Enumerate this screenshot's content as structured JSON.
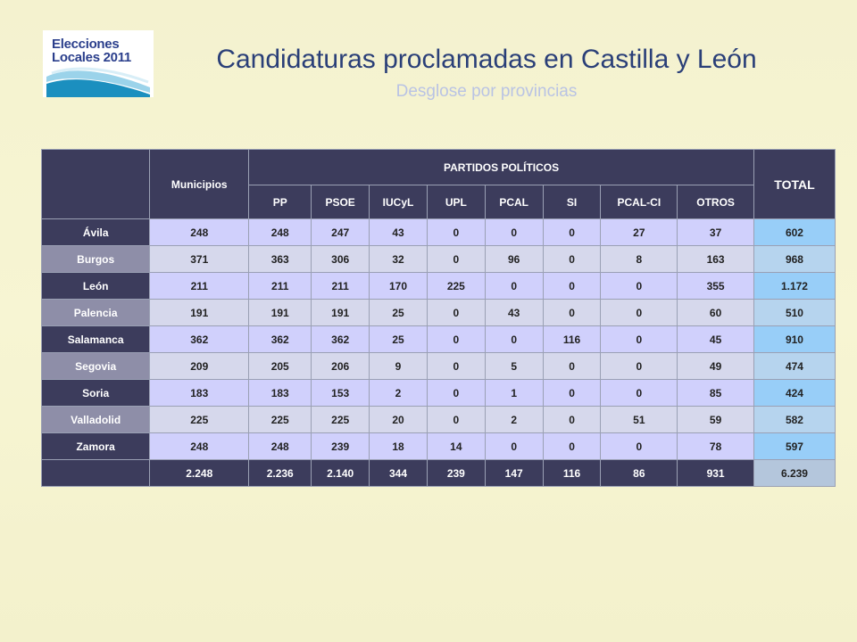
{
  "header": {
    "logo_line1": "Elecciones",
    "logo_line2": "Locales 2011",
    "title": "Candidaturas proclamadas en Castilla y León",
    "subtitle": "Desglose por provincias"
  },
  "table": {
    "col_municipios": "Municipios",
    "col_partidos": "PARTIDOS POLÍTICOS",
    "col_total": "TOTAL",
    "parties": [
      "PP",
      "PSOE",
      "IUCyL",
      "UPL",
      "PCAL",
      "SI",
      "PCAL-CI",
      "OTROS"
    ],
    "rows": [
      {
        "province": "Ávila",
        "municipios": "248",
        "values": [
          "248",
          "247",
          "43",
          "0",
          "0",
          "0",
          "27",
          "37"
        ],
        "total": "602"
      },
      {
        "province": "Burgos",
        "municipios": "371",
        "values": [
          "363",
          "306",
          "32",
          "0",
          "96",
          "0",
          "8",
          "163"
        ],
        "total": "968"
      },
      {
        "province": "León",
        "municipios": "211",
        "values": [
          "211",
          "211",
          "170",
          "225",
          "0",
          "0",
          "0",
          "355"
        ],
        "total": "1.172"
      },
      {
        "province": "Palencia",
        "municipios": "191",
        "values": [
          "191",
          "191",
          "25",
          "0",
          "43",
          "0",
          "0",
          "60"
        ],
        "total": "510"
      },
      {
        "province": "Salamanca",
        "municipios": "362",
        "values": [
          "362",
          "362",
          "25",
          "0",
          "0",
          "116",
          "0",
          "45"
        ],
        "total": "910"
      },
      {
        "province": "Segovia",
        "municipios": "209",
        "values": [
          "205",
          "206",
          "9",
          "0",
          "5",
          "0",
          "0",
          "49"
        ],
        "total": "474"
      },
      {
        "province": "Soria",
        "municipios": "183",
        "values": [
          "183",
          "153",
          "2",
          "0",
          "1",
          "0",
          "0",
          "85"
        ],
        "total": "424"
      },
      {
        "province": "Valladolid",
        "municipios": "225",
        "values": [
          "225",
          "225",
          "20",
          "0",
          "2",
          "0",
          "51",
          "59"
        ],
        "total": "582"
      },
      {
        "province": "Zamora",
        "municipios": "248",
        "values": [
          "248",
          "239",
          "18",
          "14",
          "0",
          "0",
          "0",
          "78"
        ],
        "total": "597"
      }
    ],
    "totals": {
      "municipios": "2.248",
      "values": [
        "2.236",
        "2.140",
        "344",
        "239",
        "147",
        "116",
        "86",
        "931"
      ],
      "total": "6.239"
    }
  }
}
